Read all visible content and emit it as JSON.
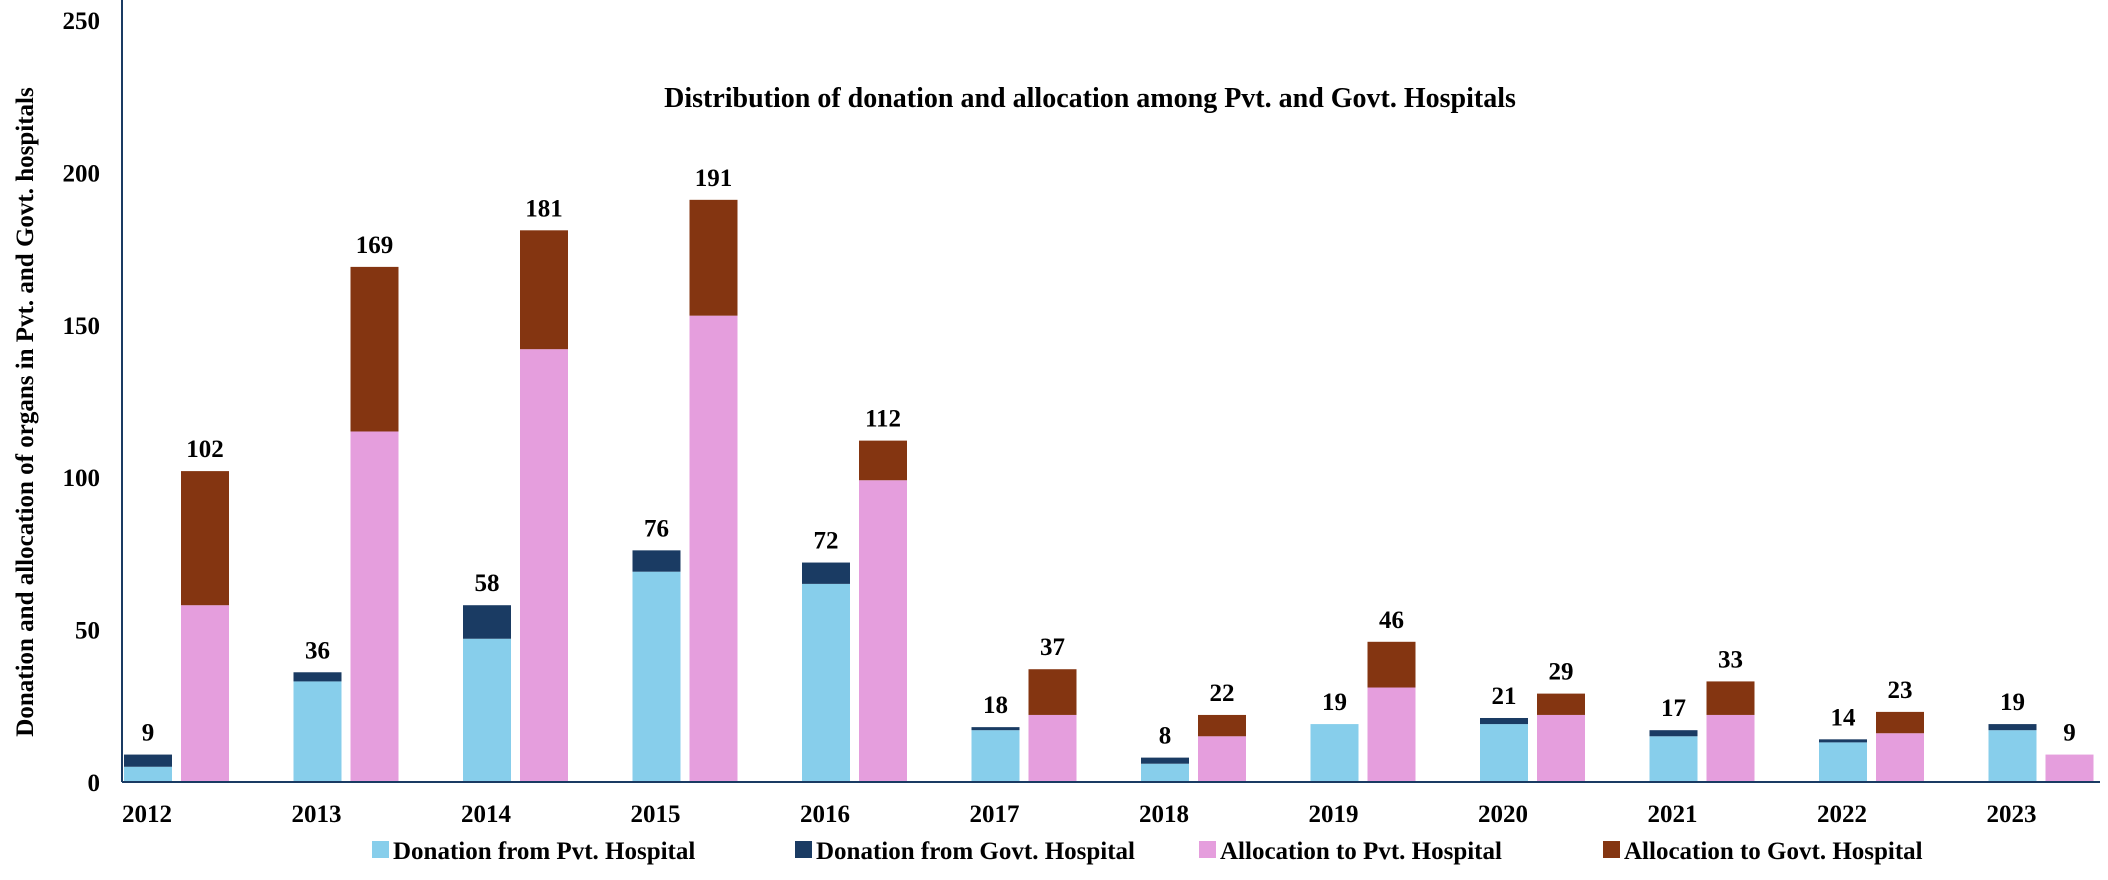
{
  "chart_data": {
    "type": "bar",
    "title": "Distribution of donation and allocation among Pvt. and Govt. Hospitals",
    "xlabel": "",
    "ylabel": "Donation and allocation of organs in Pvt. and Govt. hospitals",
    "ylim": [
      0,
      250
    ],
    "yticks": [
      0,
      50,
      100,
      150,
      200,
      250
    ],
    "grid": false,
    "legend_position": "bottom",
    "categories": [
      "2012",
      "2013",
      "2014",
      "2015",
      "2016",
      "2017",
      "2018",
      "2019",
      "2020",
      "2021",
      "2022",
      "2023"
    ],
    "stacks": [
      {
        "group": "donation",
        "totals": [
          9,
          36,
          58,
          76,
          72,
          18,
          8,
          19,
          21,
          17,
          14,
          19
        ],
        "series": [
          {
            "name": "Donation from Pvt. Hospital",
            "color": "#87CEEB",
            "values": [
              5,
              33,
              47,
              69,
              65,
              17,
              6,
              19,
              19,
              15,
              13,
              17
            ]
          },
          {
            "name": "Donation from Govt. Hospital",
            "color": "#1A3B63",
            "values": [
              4,
              3,
              11,
              7,
              7,
              1,
              2,
              0,
              2,
              2,
              1,
              2
            ]
          }
        ]
      },
      {
        "group": "allocation",
        "totals": [
          102,
          169,
          181,
          191,
          112,
          37,
          22,
          46,
          29,
          33,
          23,
          9
        ],
        "series": [
          {
            "name": "Allocation to Pvt. Hospital",
            "color": "#E59EDD",
            "values": [
              58,
              115,
              142,
              153,
              99,
              22,
              15,
              31,
              22,
              22,
              16,
              9
            ]
          },
          {
            "name": "Allocation to Govt. Hospital",
            "color": "#843511",
            "values": [
              44,
              54,
              39,
              38,
              13,
              15,
              7,
              15,
              7,
              11,
              7,
              0
            ]
          }
        ]
      }
    ],
    "legend": [
      {
        "label": "Donation from Pvt. Hospital",
        "color": "#87CEEB"
      },
      {
        "label": "Donation from Govt. Hospital",
        "color": "#1A3B63"
      },
      {
        "label": "Allocation to Pvt. Hospital",
        "color": "#E59EDD"
      },
      {
        "label": "Allocation to Govt. Hospital",
        "color": "#843511"
      }
    ]
  }
}
